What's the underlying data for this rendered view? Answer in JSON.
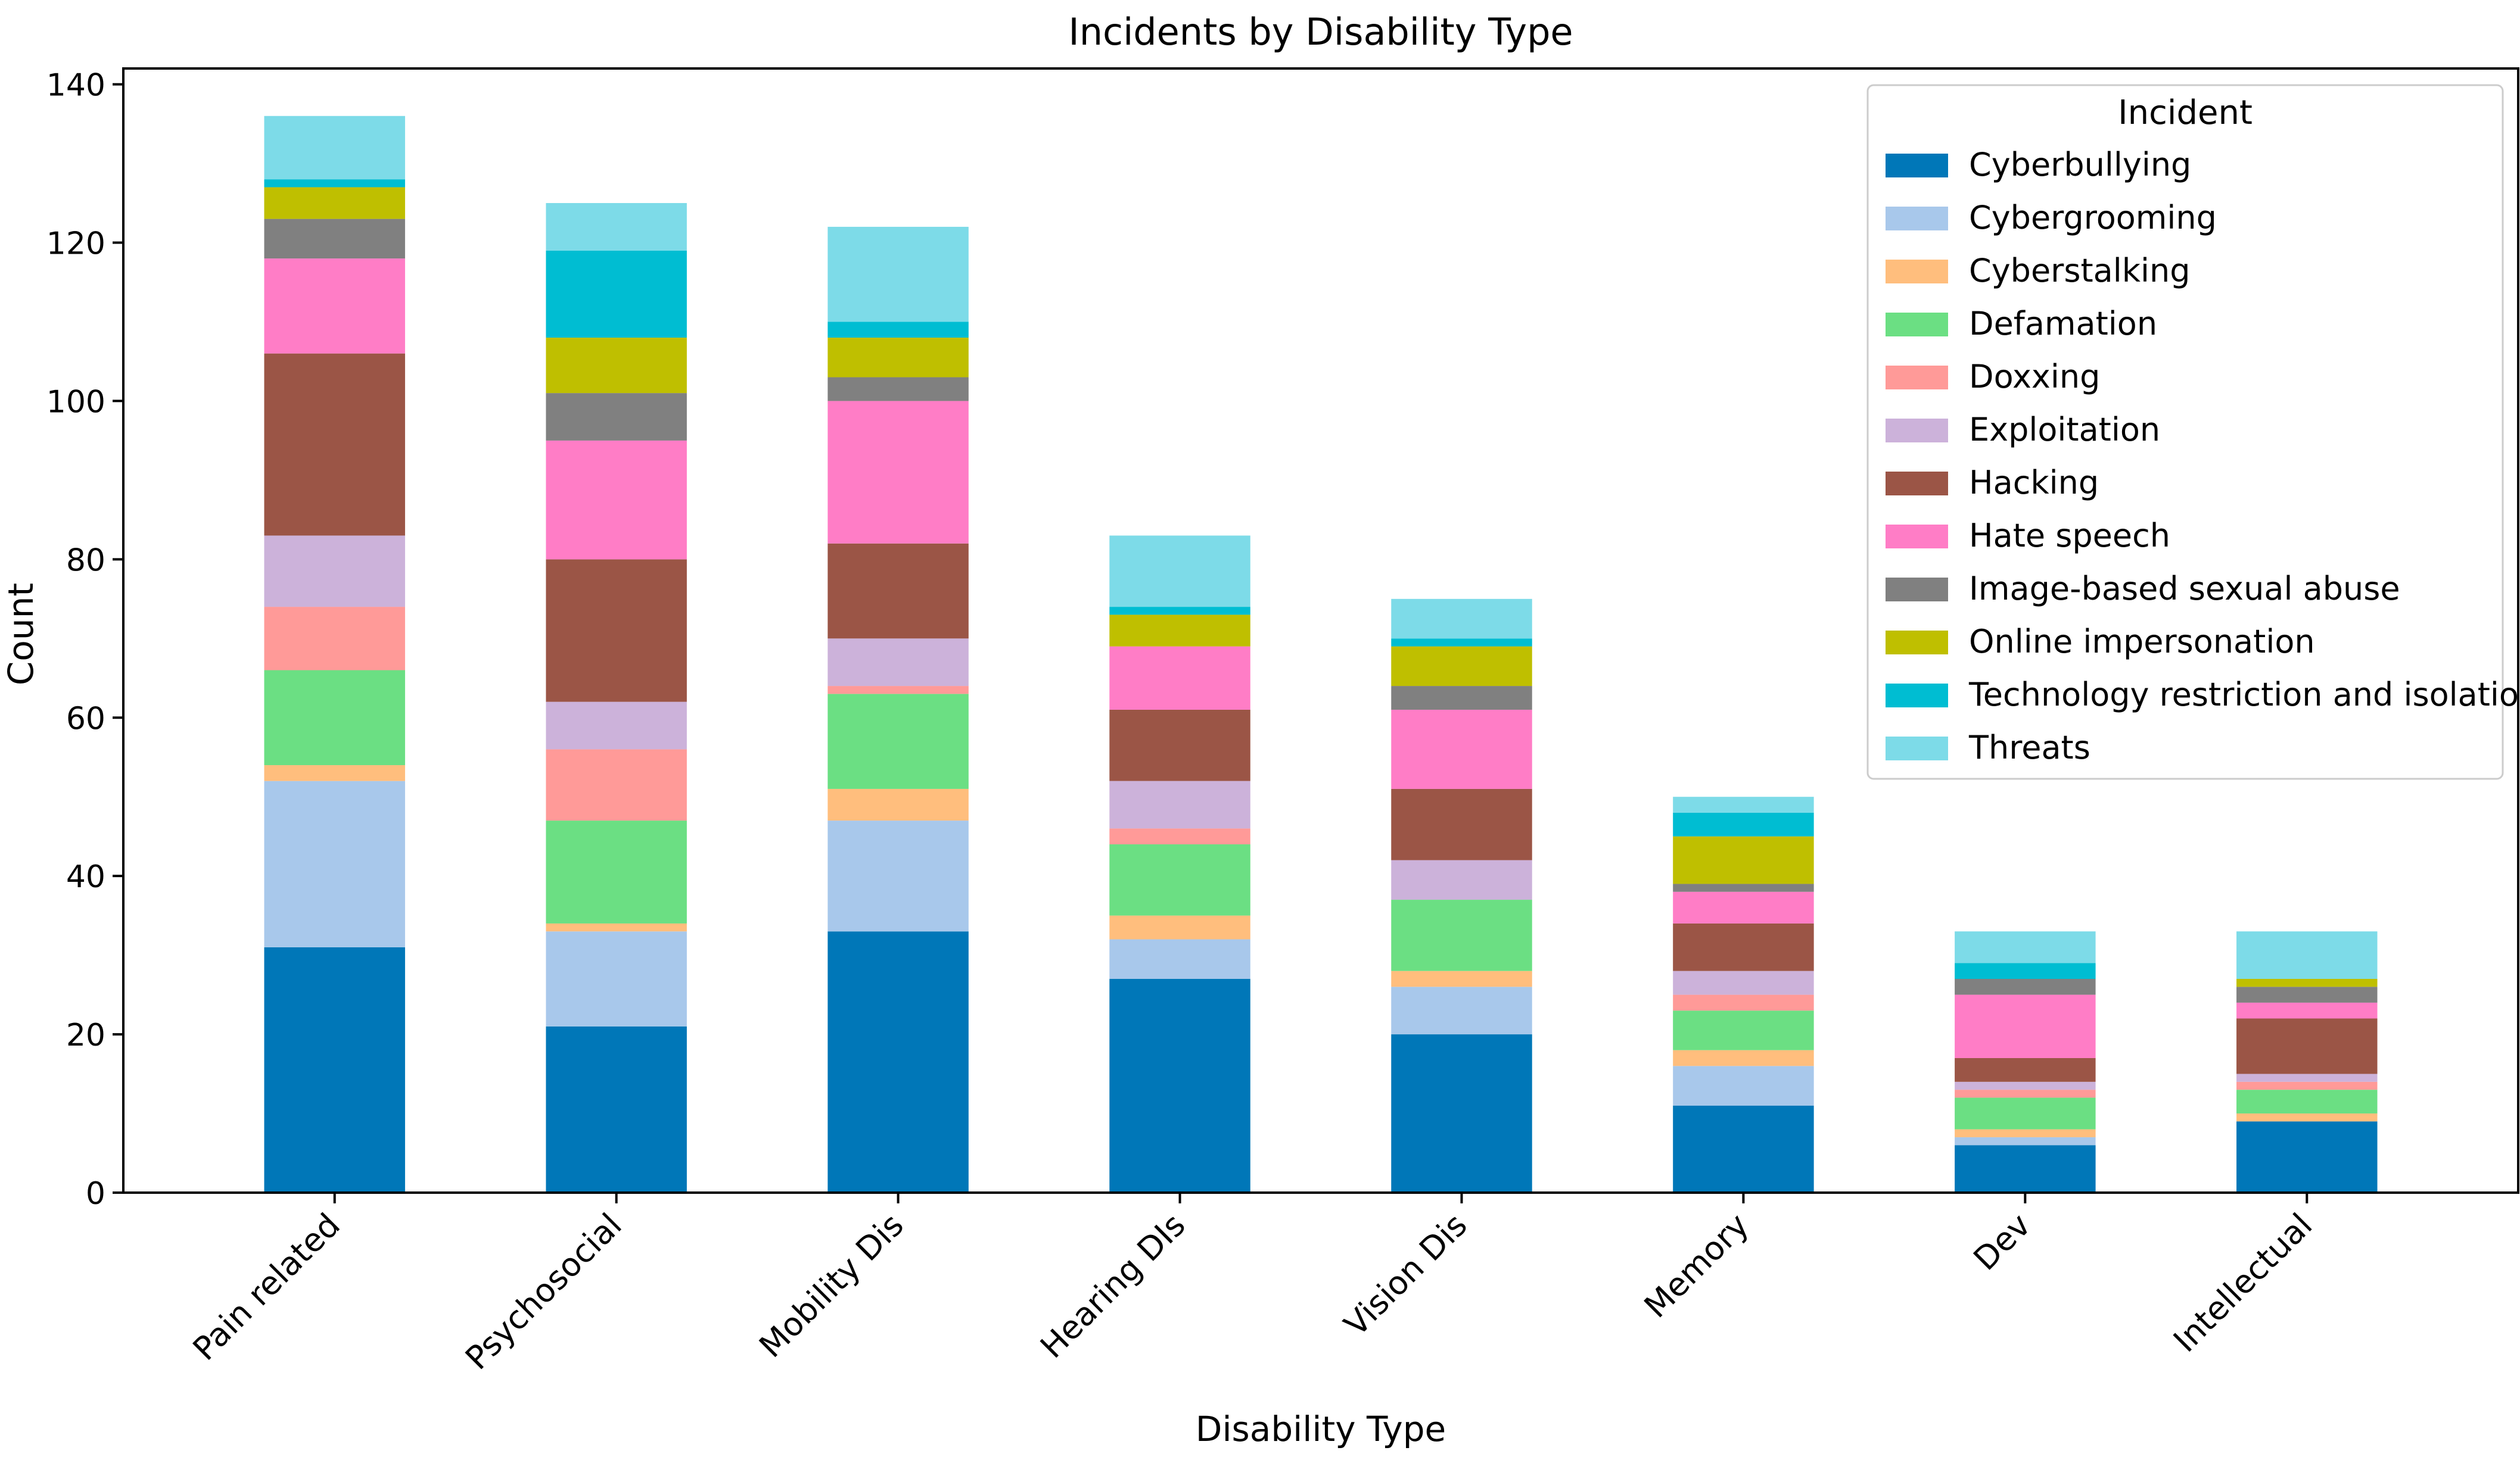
{
  "chart_data": {
    "type": "bar",
    "stacked": true,
    "title": "Incidents by Disability Type",
    "xlabel": "Disability Type",
    "ylabel": "Count",
    "ylim": [
      0,
      142
    ],
    "yticks": [
      0,
      20,
      40,
      60,
      80,
      100,
      120,
      140
    ],
    "grid": false,
    "legend": {
      "title": "Incident",
      "placement": "top-right"
    },
    "categories": [
      "Pain related",
      "Psychosocial",
      "Mobility Dis",
      "Hearing DIs",
      "Vision Dis",
      "Memory",
      "Dev",
      "Intellectual"
    ],
    "series": [
      {
        "name": "Cyberbullying",
        "color": "#0077b8",
        "values": [
          31,
          21,
          33,
          27,
          20,
          11,
          6,
          9
        ]
      },
      {
        "name": "Cybergrooming",
        "color": "#a8c8eb",
        "values": [
          21,
          12,
          14,
          5,
          6,
          5,
          1,
          0
        ]
      },
      {
        "name": "Cyberstalking",
        "color": "#ffbe7d",
        "values": [
          2,
          1,
          4,
          3,
          2,
          2,
          1,
          1
        ]
      },
      {
        "name": "Defamation",
        "color": "#6bdf83",
        "values": [
          12,
          13,
          12,
          9,
          9,
          5,
          4,
          3
        ]
      },
      {
        "name": "Doxxing",
        "color": "#ff9a98",
        "values": [
          8,
          9,
          1,
          2,
          0,
          2,
          1,
          1
        ]
      },
      {
        "name": "Exploitation",
        "color": "#ccb2da",
        "values": [
          9,
          6,
          6,
          6,
          5,
          3,
          1,
          1
        ]
      },
      {
        "name": "Hacking",
        "color": "#9b5546",
        "values": [
          23,
          18,
          12,
          9,
          9,
          6,
          3,
          7
        ]
      },
      {
        "name": "Hate speech",
        "color": "#ff7dc6",
        "values": [
          12,
          15,
          18,
          8,
          10,
          4,
          8,
          2
        ]
      },
      {
        "name": "Image-based sexual abuse",
        "color": "#808080",
        "values": [
          5,
          6,
          3,
          0,
          3,
          1,
          2,
          2
        ]
      },
      {
        "name": "Online impersonation",
        "color": "#bfbf00",
        "values": [
          4,
          7,
          5,
          4,
          5,
          6,
          0,
          1
        ]
      },
      {
        "name": "Technology restriction and isolation",
        "color": "#00bdd2",
        "values": [
          1,
          11,
          2,
          1,
          1,
          3,
          2,
          0
        ]
      },
      {
        "name": "Threats",
        "color": "#7ddbe8",
        "values": [
          8,
          6,
          12,
          9,
          5,
          2,
          4,
          6
        ]
      }
    ]
  }
}
